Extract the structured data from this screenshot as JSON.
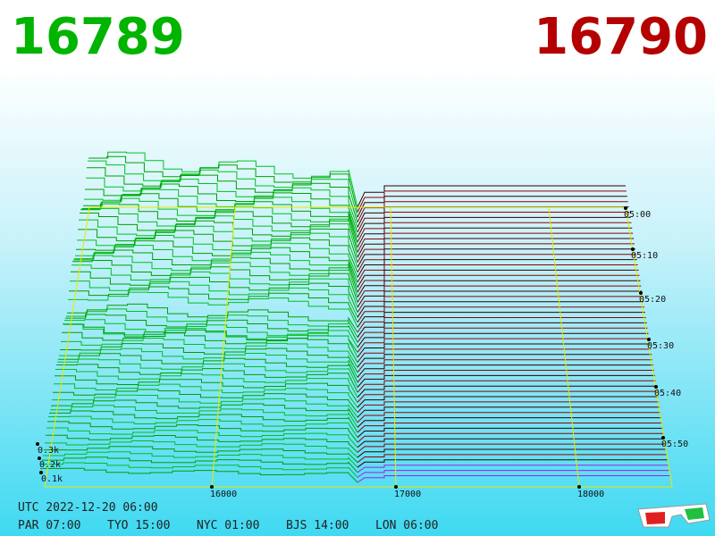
{
  "header": {
    "bid": "16789",
    "ask": "16790"
  },
  "price_axis": {
    "ticks": [
      "16000",
      "17000",
      "18000"
    ]
  },
  "time_axis": {
    "ticks": [
      "05:00",
      "05:10",
      "05:20",
      "05:30",
      "05:40",
      "05:50"
    ]
  },
  "depth_axis": {
    "ticks": [
      "0.3k",
      "0.2k",
      "0.1k"
    ]
  },
  "footer": {
    "utc": "UTC 2022-12-20 06:00",
    "zones": [
      "PAR 07:00",
      "TYO 15:00",
      "NYC 01:00",
      "BJS 14:00",
      "LON 06:00"
    ]
  }
}
